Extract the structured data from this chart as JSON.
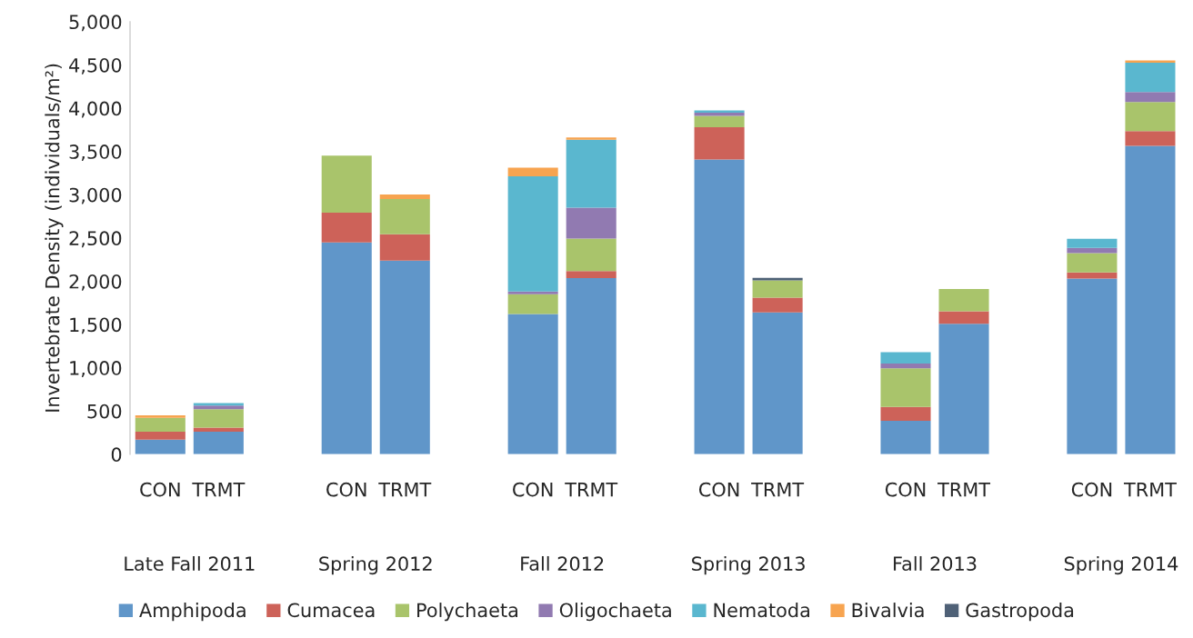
{
  "chart_data": {
    "type": "bar",
    "stacked": true,
    "ylabel": "Invertebrate Density (individuals/m²)",
    "categories": [
      "CON",
      "TRMT",
      "CON",
      "TRMT",
      "CON",
      "TRMT",
      "CON",
      "TRMT",
      "CON",
      "TRMT",
      "CON",
      "TRMT"
    ],
    "annotations": [
      "Late Fall 2011",
      "Spring 2012",
      "Fall 2012",
      "Spring 2013",
      "Fall 2013",
      "Spring 2014"
    ],
    "series": [
      {
        "name": "Amphipoda",
        "color": "#6096c9",
        "values": [
          170,
          262,
          2448,
          2238,
          1621,
          2037,
          3407,
          1639,
          387,
          1509,
          2032,
          3564
        ]
      },
      {
        "name": "Cumacea",
        "color": "#cd6259",
        "values": [
          91,
          45,
          345,
          304,
          null,
          80,
          372,
          171,
          160,
          143,
          70,
          172
        ]
      },
      {
        "name": "Polychaeta",
        "color": "#a9c46b",
        "values": [
          160,
          213,
          659,
          408,
          230,
          377,
          133,
          199,
          447,
          258,
          223,
          335
        ]
      },
      {
        "name": "Oligochaeta",
        "color": "#917ab1",
        "values": [
          null,
          42,
          null,
          null,
          31,
          356,
          35,
          null,
          55,
          null,
          60,
          115
        ]
      },
      {
        "name": "Nematoda",
        "color": "#5ab7cf",
        "values": [
          null,
          31,
          null,
          null,
          1332,
          785,
          28,
          null,
          130,
          null,
          105,
          339
        ]
      },
      {
        "name": "Bivalvia",
        "color": "#f7a450",
        "values": [
          28,
          null,
          null,
          52,
          98,
          28,
          null,
          null,
          null,
          null,
          null,
          27
        ]
      },
      {
        "name": "Gastropoda",
        "color": "#4f6177",
        "values": [
          null,
          null,
          null,
          null,
          null,
          null,
          null,
          31,
          null,
          null,
          null,
          null
        ]
      }
    ],
    "ylim": [
      0,
      5000
    ],
    "yticks": [
      0,
      500,
      {
        "value": 1000,
        "label": "1,000"
      },
      {
        "value": 1500,
        "label": "1,500"
      },
      {
        "value": 2000,
        "label": "2,000"
      },
      {
        "value": 2500,
        "label": "2,500"
      },
      {
        "value": 3000,
        "label": "3,000"
      },
      {
        "value": 3500,
        "label": "3,500"
      },
      {
        "value": 4000,
        "label": "4,000"
      },
      {
        "value": 4500,
        "label": "4,500"
      },
      {
        "value": 5000,
        "label": "5,000"
      }
    ],
    "grid": false,
    "legend": "bottom"
  }
}
